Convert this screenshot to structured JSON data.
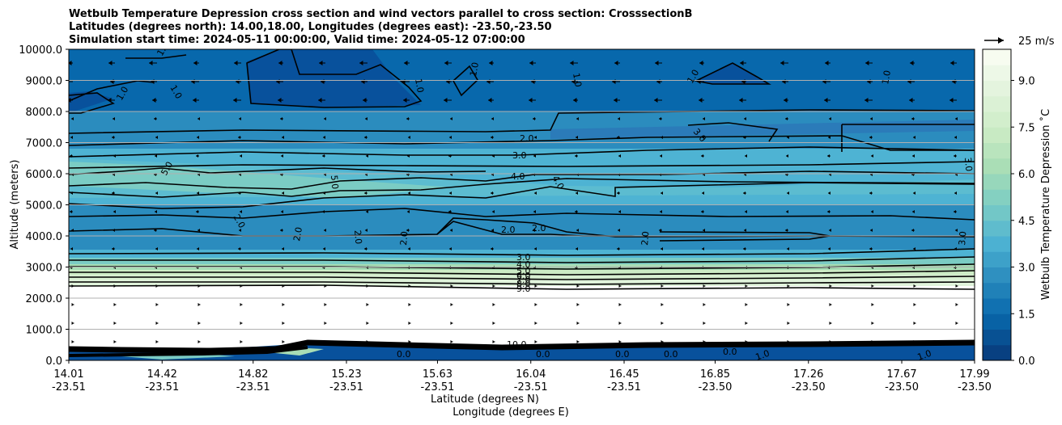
{
  "chart_data": {
    "type": "filled-contour cross section with wind vectors",
    "title_lines": [
      "Wetbulb Temperature Depression cross section and wind vectors parallel to cross section: CrosssectionB",
      "Latitudes (degrees north): 14.00,18.00, Longitudes (degrees east): -23.50,-23.50",
      "Simulation start time: 2024-05-11 00:00:00, Valid time: 2024-05-12 07:00:00"
    ],
    "xlabel_lat": "Latitude (degrees N)",
    "xlabel_lon": "Longitude (degrees E)",
    "ylabel": "Altitude (meters)",
    "ylim": [
      0,
      10000
    ],
    "yticks": [
      "0.0",
      "1000.0",
      "2000.0",
      "3000.0",
      "4000.0",
      "5000.0",
      "6000.0",
      "7000.0",
      "8000.0",
      "9000.0",
      "10000.0"
    ],
    "xlim": [
      14.01,
      17.99
    ],
    "xticks": [
      {
        "lat": "14.01",
        "lon": "-23.51"
      },
      {
        "lat": "14.42",
        "lon": "-23.51"
      },
      {
        "lat": "14.82",
        "lon": "-23.51"
      },
      {
        "lat": "15.23",
        "lon": "-23.51"
      },
      {
        "lat": "15.63",
        "lon": "-23.51"
      },
      {
        "lat": "16.04",
        "lon": "-23.51"
      },
      {
        "lat": "16.45",
        "lon": "-23.51"
      },
      {
        "lat": "16.85",
        "lon": "-23.50"
      },
      {
        "lat": "17.26",
        "lon": "-23.50"
      },
      {
        "lat": "17.67",
        "lon": "-23.50"
      },
      {
        "lat": "17.99",
        "lon": "-23.50"
      }
    ],
    "colorbar": {
      "label": "Wetbulb Temperature Depression ˚C",
      "range": [
        0,
        10
      ],
      "ticks": [
        "0.0",
        "1.5",
        "3.0",
        "4.5",
        "6.0",
        "7.5",
        "9.0"
      ],
      "colors": [
        "#084081",
        "#0868ac",
        "#2b8cbe",
        "#4eb3d3",
        "#7bccc4",
        "#a8ddb5",
        "#ccebc5",
        "#e0f3db",
        "#f7fcf0"
      ]
    },
    "quiver_key": "25 m/s",
    "layers": [
      {
        "altitude_range_m": [
          0,
          500
        ],
        "depression_C": 0.5
      },
      {
        "altitude_range_m": [
          500,
          2300
        ],
        "depression_C": null
      },
      {
        "altitude_range_m": [
          2300,
          3500
        ],
        "depression_C": "3.0-9.0"
      },
      {
        "altitude_range_m": [
          3500,
          4800
        ],
        "depression_C": 2.5
      },
      {
        "altitude_range_m": [
          4800,
          6600
        ],
        "depression_C": 4.5
      },
      {
        "altitude_range_m": [
          6600,
          8000
        ],
        "depression_C": 2.0
      },
      {
        "altitude_range_m": [
          8000,
          10000
        ],
        "depression_C": 1.2
      }
    ],
    "contour_labels": [
      "1.0",
      "1.0",
      "1.0",
      "1.0",
      "1.0",
      "1.0",
      "1.0",
      "1.0",
      "2.0",
      "3.0",
      "4.0",
      "5.0",
      "5.0",
      "4.0",
      "3.0",
      "3.0",
      "2.0",
      "2.0",
      "2.0",
      "2.0",
      "2.0",
      "2.0",
      "2.0",
      "3.0",
      "3.0",
      "4.0",
      "5.0",
      "6.0",
      "7.0",
      "8.0",
      "9.0",
      "10.0",
      "0.0",
      "0.0",
      "0.0",
      "0.0",
      "0.0",
      "1.0",
      "1.0"
    ]
  }
}
